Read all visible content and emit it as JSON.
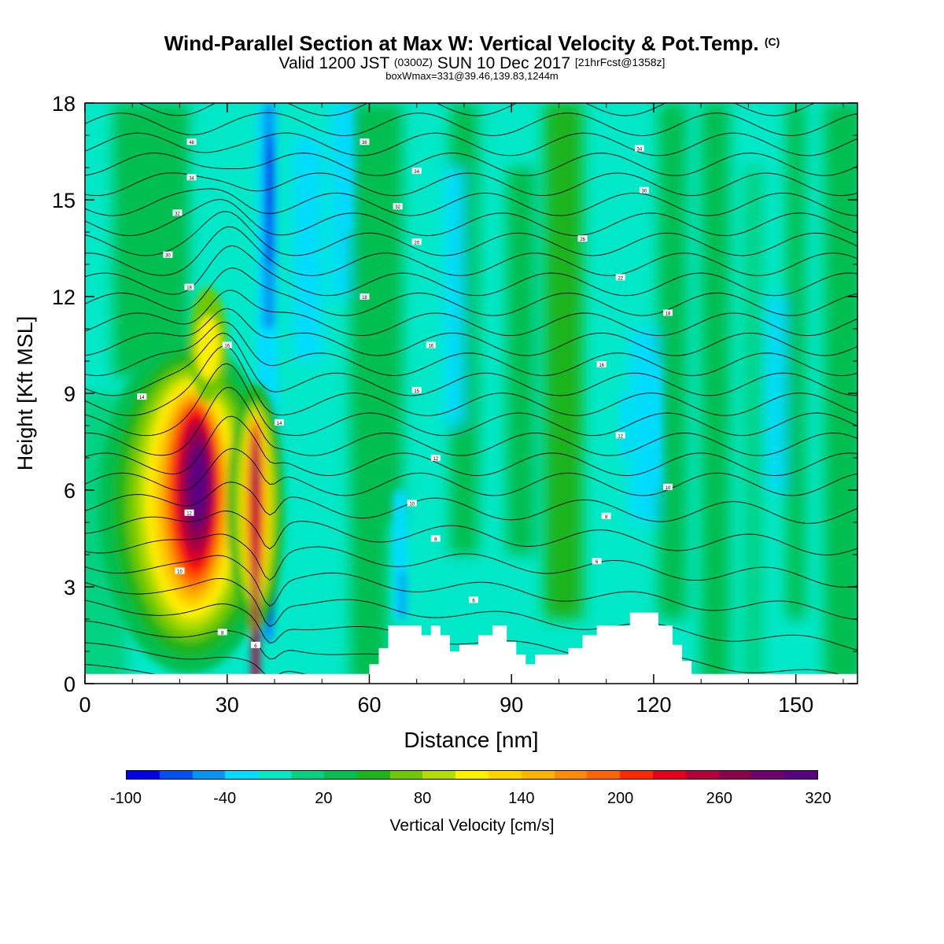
{
  "title": {
    "main": "Wind-Parallel Section at Max W: Vertical Velocity & Pot.Temp.",
    "copyright_mark": "(C)",
    "valid_prefix": "Valid 1200 JST",
    "valid_utc": "(0300Z)",
    "valid_date": "SUN 10 Dec 2017",
    "forecast_info": "[21hrFcst@1358z]",
    "box_w_max": "boxWmax=331@39.46,139.83,1244m"
  },
  "chart_data": {
    "type": "heatmap",
    "xlabel": "Distance [nm]",
    "ylabel": "Height [Kft MSL]",
    "xlim": [
      0,
      163
    ],
    "ylim": [
      0,
      18
    ],
    "x_ticks": [
      "0",
      "30",
      "60",
      "90",
      "120",
      "150"
    ],
    "y_ticks": [
      "0",
      "3",
      "6",
      "9",
      "12",
      "15",
      "18"
    ],
    "colorbar": {
      "label": "Vertical Velocity [cm/s]",
      "tick_labels": [
        "-100",
        "-40",
        "20",
        "80",
        "140",
        "200",
        "260",
        "320"
      ],
      "levels": [
        -100,
        -80,
        -60,
        -40,
        -20,
        0,
        20,
        40,
        60,
        80,
        100,
        120,
        140,
        160,
        180,
        200,
        220,
        240,
        260,
        280,
        300,
        320
      ],
      "colors": [
        "#0000e6",
        "#0050f0",
        "#0096f0",
        "#00dcff",
        "#00e8c8",
        "#00d282",
        "#00be50",
        "#1eb41e",
        "#6ec800",
        "#b4dc00",
        "#fff000",
        "#ffd200",
        "#ffb400",
        "#ff8c00",
        "#ff6400",
        "#ff2800",
        "#e6001e",
        "#b4003c",
        "#8c0050",
        "#6e006e",
        "#5a0082"
      ]
    },
    "updraft_features": [
      {
        "x": 26,
        "y": 6.8,
        "w_cms": 331
      },
      {
        "x": 36,
        "y": 5.5,
        "w_cms": 260
      }
    ],
    "downdraft_features": [
      {
        "x": 39,
        "y": 16,
        "w_cms": -100
      },
      {
        "x": 39,
        "y": 2.5,
        "w_cms": -80
      },
      {
        "x": 67,
        "y": 2.5,
        "w_cms": -60
      }
    ],
    "terrain_nm_kft": [
      [
        0,
        0.3
      ],
      [
        59,
        0.3
      ],
      [
        60,
        0.6
      ],
      [
        62,
        1.1
      ],
      [
        64,
        1.8
      ],
      [
        69,
        1.8
      ],
      [
        71,
        1.5
      ],
      [
        73,
        1.8
      ],
      [
        75,
        1.5
      ],
      [
        77,
        1.0
      ],
      [
        79,
        1.2
      ],
      [
        81,
        1.2
      ],
      [
        83,
        1.5
      ],
      [
        86,
        1.8
      ],
      [
        89,
        1.3
      ],
      [
        91,
        0.9
      ],
      [
        93,
        0.6
      ],
      [
        95,
        0.9
      ],
      [
        99,
        0.9
      ],
      [
        102,
        1.1
      ],
      [
        105,
        1.5
      ],
      [
        108,
        1.8
      ],
      [
        112,
        1.8
      ],
      [
        115,
        2.2
      ],
      [
        118,
        2.2
      ],
      [
        121,
        1.8
      ],
      [
        124,
        1.2
      ],
      [
        126,
        0.7
      ],
      [
        128,
        0.3
      ],
      [
        163,
        0.3
      ]
    ],
    "theta_contour_labels": [
      {
        "x": 22.5,
        "y": 16.8,
        "text": "48"
      },
      {
        "x": 22.5,
        "y": 15.7,
        "text": "34"
      },
      {
        "x": 19.5,
        "y": 14.6,
        "text": "32"
      },
      {
        "x": 17.5,
        "y": 13.3,
        "text": "30"
      },
      {
        "x": 22,
        "y": 12.3,
        "text": "18"
      },
      {
        "x": 30,
        "y": 10.5,
        "text": "16"
      },
      {
        "x": 12,
        "y": 8.9,
        "text": "14"
      },
      {
        "x": 41,
        "y": 8.1,
        "text": "14"
      },
      {
        "x": 22,
        "y": 5.3,
        "text": "12"
      },
      {
        "x": 20,
        "y": 3.5,
        "text": "10"
      },
      {
        "x": 29,
        "y": 1.6,
        "text": "8"
      },
      {
        "x": 36,
        "y": 1.2,
        "text": "6"
      },
      {
        "x": 59,
        "y": 16.8,
        "text": "36"
      },
      {
        "x": 66,
        "y": 14.8,
        "text": "32"
      },
      {
        "x": 70,
        "y": 15.9,
        "text": "34"
      },
      {
        "x": 70,
        "y": 13.7,
        "text": "20"
      },
      {
        "x": 59,
        "y": 12.0,
        "text": "18"
      },
      {
        "x": 73,
        "y": 10.5,
        "text": "16"
      },
      {
        "x": 70,
        "y": 9.1,
        "text": "15"
      },
      {
        "x": 74,
        "y": 7.0,
        "text": "12"
      },
      {
        "x": 69,
        "y": 5.6,
        "text": "10"
      },
      {
        "x": 74,
        "y": 4.5,
        "text": "8"
      },
      {
        "x": 82,
        "y": 2.6,
        "text": "6"
      },
      {
        "x": 117,
        "y": 16.6,
        "text": "34"
      },
      {
        "x": 118,
        "y": 15.3,
        "text": "30"
      },
      {
        "x": 105,
        "y": 13.8,
        "text": "26"
      },
      {
        "x": 113,
        "y": 12.6,
        "text": "22"
      },
      {
        "x": 123,
        "y": 11.5,
        "text": "18"
      },
      {
        "x": 109,
        "y": 9.9,
        "text": "16"
      },
      {
        "x": 113,
        "y": 7.7,
        "text": "12"
      },
      {
        "x": 123,
        "y": 6.1,
        "text": "10"
      },
      {
        "x": 110,
        "y": 5.2,
        "text": "8"
      },
      {
        "x": 108,
        "y": 3.8,
        "text": "6"
      }
    ]
  }
}
